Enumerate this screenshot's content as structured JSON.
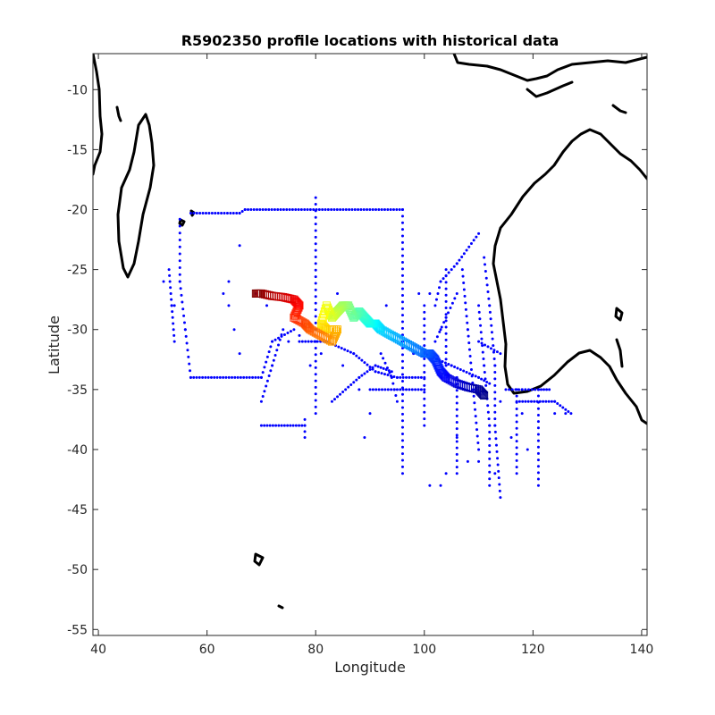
{
  "figure": {
    "title": "R5902350 profile locations with historical data",
    "xlabel": "Longitude",
    "ylabel": "Latitude"
  },
  "chart_data": {
    "type": "scatter",
    "title": "R5902350 profile locations with historical data",
    "xlabel": "Longitude",
    "ylabel": "Latitude",
    "xlim": [
      39,
      141
    ],
    "ylim": [
      -55.5,
      -7
    ],
    "xticks": [
      40,
      60,
      80,
      100,
      120,
      140
    ],
    "yticks": [
      -10,
      -15,
      -20,
      -25,
      -30,
      -35,
      -40,
      -45,
      -50,
      -55
    ],
    "grid": false,
    "series": [
      {
        "marker": "dot",
        "color": "#0000ff",
        "lines": [
          [
            [
              57,
              -20.3
            ],
            [
              66,
              -20.3
            ],
            [
              67,
              -20
            ],
            [
              96,
              -20
            ]
          ],
          [
            [
              96,
              -20
            ],
            [
              96,
              -42
            ]
          ],
          [
            [
              80,
              -19
            ],
            [
              80,
              -30
            ]
          ],
          [
            [
              55,
              -20.8
            ],
            [
              55,
              -26
            ],
            [
              56,
              -30
            ],
            [
              57,
              -34
            ]
          ],
          [
            [
              53,
              -25
            ],
            [
              53.5,
              -28
            ],
            [
              54,
              -31
            ]
          ],
          [
            [
              57,
              -34
            ],
            [
              70,
              -34
            ],
            [
              72,
              -31
            ],
            [
              76,
              -30
            ]
          ],
          [
            [
              77,
              -31
            ],
            [
              82,
              -31
            ],
            [
              87,
              -32
            ],
            [
              91,
              -33.5
            ],
            [
              95,
              -34
            ],
            [
              100,
              -34
            ]
          ],
          [
            [
              80,
              -31
            ],
            [
              80,
              -37
            ]
          ],
          [
            [
              83,
              -36
            ],
            [
              88,
              -34
            ],
            [
              91,
              -33
            ],
            [
              94,
              -33.5
            ]
          ],
          [
            [
              92,
              -32
            ],
            [
              94,
              -34
            ],
            [
              95,
              -36
            ]
          ],
          [
            [
              90,
              -35
            ],
            [
              100,
              -35
            ]
          ],
          [
            [
              100,
              -32
            ],
            [
              105,
              -33
            ],
            [
              110,
              -34
            ],
            [
              112,
              -34.5
            ]
          ],
          [
            [
              110,
              -31
            ],
            [
              114,
              -32
            ]
          ],
          [
            [
              102,
              -28
            ],
            [
              103,
              -26
            ],
            [
              106,
              -24.5
            ],
            [
              110,
              -22
            ]
          ],
          [
            [
              107,
              -25
            ],
            [
              108,
              -30
            ],
            [
              109,
              -35
            ],
            [
              110,
              -40
            ]
          ],
          [
            [
              104,
              -25
            ],
            [
              104,
              -33
            ]
          ],
          [
            [
              111,
              -24
            ],
            [
              112,
              -28
            ],
            [
              113,
              -33
            ],
            [
              113,
              -38
            ],
            [
              114,
              -44
            ]
          ],
          [
            [
              110,
              -28
            ],
            [
              111,
              -33
            ],
            [
              112,
              -38
            ],
            [
              112,
              -43
            ]
          ],
          [
            [
              100,
              -28
            ],
            [
              100,
              -38
            ]
          ],
          [
            [
              106,
              -34
            ],
            [
              106,
              -42
            ]
          ],
          [
            [
              115,
              -35
            ],
            [
              118,
              -35
            ],
            [
              121,
              -35
            ],
            [
              123,
              -35
            ]
          ],
          [
            [
              117,
              -35
            ],
            [
              117,
              -42
            ]
          ],
          [
            [
              121,
              -35
            ],
            [
              121,
              -43
            ]
          ],
          [
            [
              117,
              -36
            ],
            [
              124,
              -36
            ],
            [
              127,
              -37
            ]
          ],
          [
            [
              70,
              -38
            ],
            [
              78,
              -38
            ]
          ],
          [
            [
              78,
              -37.5
            ],
            [
              78,
              -39
            ]
          ],
          [
            [
              74,
              -30
            ],
            [
              72,
              -33
            ],
            [
              70,
              -36
            ]
          ],
          [
            [
              102,
              -31
            ],
            [
              104,
              -29
            ],
            [
              106,
              -27
            ]
          ]
        ],
        "points": [
          [
            63,
            -27
          ],
          [
            64,
            -28
          ],
          [
            65,
            -30
          ],
          [
            66,
            -32
          ],
          [
            66,
            -23
          ],
          [
            64,
            -26
          ],
          [
            89,
            -39
          ],
          [
            101,
            -43
          ],
          [
            103,
            -43
          ],
          [
            104,
            -42
          ],
          [
            106,
            -39
          ],
          [
            108,
            -41
          ],
          [
            110,
            -41
          ],
          [
            113,
            -42
          ],
          [
            118,
            -37
          ],
          [
            124,
            -37
          ],
          [
            126,
            -37
          ],
          [
            119,
            -40
          ],
          [
            114,
            -36
          ],
          [
            116,
            -39
          ],
          [
            90,
            -37
          ],
          [
            88,
            -35
          ],
          [
            85,
            -33
          ],
          [
            81,
            -32
          ],
          [
            79,
            -33
          ],
          [
            69,
            -27
          ],
          [
            71,
            -28
          ],
          [
            75,
            -31
          ],
          [
            77,
            -30.5
          ],
          [
            84,
            -27
          ],
          [
            93,
            -28
          ],
          [
            99,
            -27
          ],
          [
            101,
            -27
          ],
          [
            103,
            -30
          ],
          [
            98,
            -32
          ],
          [
            52,
            -26
          ],
          [
            54,
            -28
          ]
        ]
      },
      {
        "marker": "square",
        "colormap": "jet",
        "path": [
          [
            111,
            -35.5
          ],
          [
            110,
            -35
          ],
          [
            108,
            -34.8
          ],
          [
            106,
            -34.5
          ],
          [
            104,
            -34
          ],
          [
            103,
            -33.5
          ],
          [
            102,
            -32.5
          ],
          [
            101,
            -32
          ],
          [
            100,
            -32
          ],
          [
            98,
            -31.5
          ],
          [
            96,
            -31
          ],
          [
            94,
            -30.5
          ],
          [
            92,
            -30
          ],
          [
            91,
            -29.5
          ],
          [
            90,
            -29.5
          ],
          [
            89,
            -29
          ],
          [
            88,
            -28.5
          ],
          [
            87,
            -29
          ],
          [
            86,
            -28
          ],
          [
            85,
            -28
          ],
          [
            84,
            -28.5
          ],
          [
            83,
            -29
          ],
          [
            82,
            -28
          ],
          [
            81,
            -29.5
          ],
          [
            82,
            -30
          ],
          [
            84,
            -30
          ],
          [
            83,
            -31
          ],
          [
            81,
            -30.5
          ],
          [
            79,
            -30
          ],
          [
            78,
            -29.5
          ],
          [
            76,
            -29
          ],
          [
            77,
            -28
          ],
          [
            76,
            -27.5
          ],
          [
            74,
            -27.3
          ],
          [
            72,
            -27.2
          ],
          [
            70,
            -27
          ],
          [
            69,
            -27
          ]
        ]
      }
    ]
  },
  "map": {
    "coastline_color": "#000000",
    "land": [
      "Madagascar",
      "Africa coast",
      "Australia",
      "Indonesia",
      "Kerguelen Islands"
    ]
  }
}
